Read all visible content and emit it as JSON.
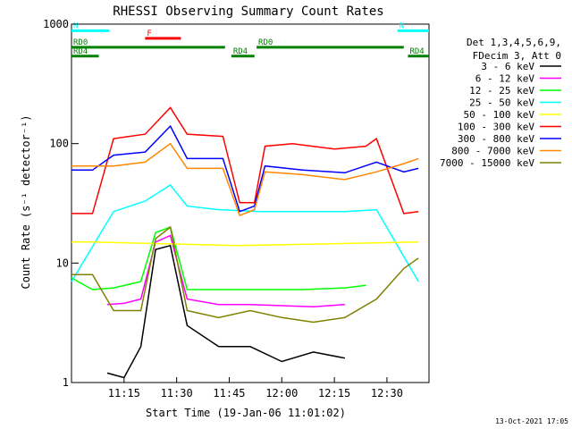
{
  "chart_data": {
    "type": "line",
    "title": "RHESSI Observing Summary Count Rates",
    "xlabel": "Start Time (19-Jan-06 11:01:02)",
    "ylabel": "Count Rate (s⁻¹ detector⁻¹)",
    "y_scale": "log",
    "ylim": [
      1,
      1000
    ],
    "xlim": [
      11.0,
      12.7
    ],
    "x_ticks": [
      {
        "t": 11.25,
        "label": "11:15"
      },
      {
        "t": 11.5,
        "label": "11:30"
      },
      {
        "t": 11.75,
        "label": "11:45"
      },
      {
        "t": 12.0,
        "label": "12:00"
      },
      {
        "t": 12.25,
        "label": "12:15"
      },
      {
        "t": 12.5,
        "label": "12:30"
      }
    ],
    "y_ticks": [
      {
        "v": 1,
        "label": "1"
      },
      {
        "v": 10,
        "label": "10"
      },
      {
        "v": 100,
        "label": "100"
      },
      {
        "v": 1000,
        "label": "1000"
      }
    ],
    "legend_header": [
      "Det 1,3,4,5,6,9,",
      "FDecim 3, Att 0"
    ],
    "legend_position": "right",
    "series": [
      {
        "name": "3 - 6 keV",
        "color": "#000000",
        "points": [
          [
            11.17,
            1.2
          ],
          [
            11.25,
            1.1
          ],
          [
            11.33,
            2.0
          ],
          [
            11.4,
            13
          ],
          [
            11.47,
            14
          ],
          [
            11.55,
            3
          ],
          [
            11.7,
            2
          ],
          [
            11.85,
            2
          ],
          [
            12.0,
            1.5
          ],
          [
            12.15,
            1.8
          ],
          [
            12.3,
            1.6
          ]
        ]
      },
      {
        "name": "6 - 12 keV",
        "color": "#ff00ff",
        "points": [
          [
            11.17,
            4.5
          ],
          [
            11.25,
            4.6
          ],
          [
            11.33,
            5.0
          ],
          [
            11.4,
            15
          ],
          [
            11.47,
            17
          ],
          [
            11.55,
            5
          ],
          [
            11.7,
            4.5
          ],
          [
            11.85,
            4.5
          ],
          [
            12.0,
            4.4
          ],
          [
            12.15,
            4.3
          ],
          [
            12.3,
            4.5
          ]
        ]
      },
      {
        "name": "12 - 25 keV",
        "color": "#00ff00",
        "points": [
          [
            11.0,
            7.5
          ],
          [
            11.1,
            6.0
          ],
          [
            11.2,
            6.2
          ],
          [
            11.33,
            7
          ],
          [
            11.4,
            18
          ],
          [
            11.47,
            20
          ],
          [
            11.55,
            6
          ],
          [
            11.7,
            6
          ],
          [
            11.9,
            6
          ],
          [
            12.1,
            6
          ],
          [
            12.3,
            6.2
          ],
          [
            12.4,
            6.5
          ]
        ]
      },
      {
        "name": "25 - 50 keV",
        "color": "#00ffff",
        "points": [
          [
            11.0,
            7.0
          ],
          [
            11.2,
            27
          ],
          [
            11.35,
            33
          ],
          [
            11.47,
            45
          ],
          [
            11.55,
            30
          ],
          [
            11.7,
            28
          ],
          [
            11.9,
            27
          ],
          [
            12.1,
            27
          ],
          [
            12.3,
            27
          ],
          [
            12.45,
            28
          ],
          [
            12.65,
            7
          ]
        ]
      },
      {
        "name": "50 - 100 keV",
        "color": "#ffff00",
        "points": [
          [
            11.0,
            15
          ],
          [
            11.1,
            15
          ],
          [
            11.8,
            14
          ],
          [
            12.65,
            15
          ]
        ]
      },
      {
        "name": "100 - 300 keV",
        "color": "#ff0000",
        "points": [
          [
            11.0,
            26
          ],
          [
            11.1,
            26
          ],
          [
            11.2,
            110
          ],
          [
            11.35,
            120
          ],
          [
            11.47,
            200
          ],
          [
            11.55,
            120
          ],
          [
            11.72,
            115
          ],
          [
            11.8,
            32
          ],
          [
            11.87,
            32
          ],
          [
            11.92,
            95
          ],
          [
            12.05,
            100
          ],
          [
            12.25,
            90
          ],
          [
            12.4,
            95
          ],
          [
            12.45,
            110
          ],
          [
            12.58,
            26
          ],
          [
            12.65,
            27
          ]
        ]
      },
      {
        "name": "300 - 800 keV",
        "color": "#0000ff",
        "points": [
          [
            11.0,
            60
          ],
          [
            11.1,
            60
          ],
          [
            11.2,
            80
          ],
          [
            11.35,
            85
          ],
          [
            11.47,
            140
          ],
          [
            11.55,
            75
          ],
          [
            11.72,
            75
          ],
          [
            11.8,
            27
          ],
          [
            11.87,
            30
          ],
          [
            11.92,
            65
          ],
          [
            12.1,
            60
          ],
          [
            12.3,
            57
          ],
          [
            12.45,
            70
          ],
          [
            12.58,
            58
          ],
          [
            12.65,
            62
          ]
        ]
      },
      {
        "name": "800 - 7000 keV",
        "color": "#ff8800",
        "points": [
          [
            11.0,
            65
          ],
          [
            11.1,
            65
          ],
          [
            11.2,
            65
          ],
          [
            11.35,
            70
          ],
          [
            11.47,
            100
          ],
          [
            11.55,
            62
          ],
          [
            11.72,
            62
          ],
          [
            11.8,
            25
          ],
          [
            11.87,
            28
          ],
          [
            11.92,
            58
          ],
          [
            12.1,
            55
          ],
          [
            12.3,
            50
          ],
          [
            12.45,
            58
          ],
          [
            12.58,
            68
          ],
          [
            12.65,
            75
          ]
        ]
      },
      {
        "name": "7000 - 15000 keV",
        "color": "#808000",
        "points": [
          [
            11.0,
            8
          ],
          [
            11.1,
            8
          ],
          [
            11.2,
            4
          ],
          [
            11.33,
            4
          ],
          [
            11.4,
            16
          ],
          [
            11.47,
            20
          ],
          [
            11.55,
            4
          ],
          [
            11.7,
            3.5
          ],
          [
            11.85,
            4
          ],
          [
            12.0,
            3.5
          ],
          [
            12.15,
            3.2
          ],
          [
            12.3,
            3.5
          ],
          [
            12.45,
            5
          ],
          [
            12.58,
            9
          ],
          [
            12.65,
            11
          ]
        ]
      }
    ],
    "annotations": [
      {
        "label": "N",
        "color": "#00ffff",
        "t0": 11.0,
        "t1": 11.18,
        "v": 880
      },
      {
        "label": "N",
        "color": "#00ffff",
        "t0": 12.55,
        "t1": 12.7,
        "v": 880
      },
      {
        "label": "F",
        "color": "#ff0000",
        "t0": 11.35,
        "t1": 11.52,
        "v": 760
      },
      {
        "label": "RD0",
        "color": "#008000",
        "t0": 11.0,
        "t1": 11.73,
        "v": 640
      },
      {
        "label": "RD0",
        "color": "#008000",
        "t0": 11.88,
        "t1": 12.58,
        "v": 640
      },
      {
        "label": "RD4",
        "color": "#008000",
        "t0": 11.0,
        "t1": 11.13,
        "v": 540
      },
      {
        "label": "RD4",
        "color": "#008000",
        "t0": 11.76,
        "t1": 11.87,
        "v": 540
      },
      {
        "label": "RD4",
        "color": "#008000",
        "t0": 12.6,
        "t1": 12.7,
        "v": 540
      }
    ]
  },
  "footer": {
    "timestamp": "13-Oct-2021 17:05"
  }
}
